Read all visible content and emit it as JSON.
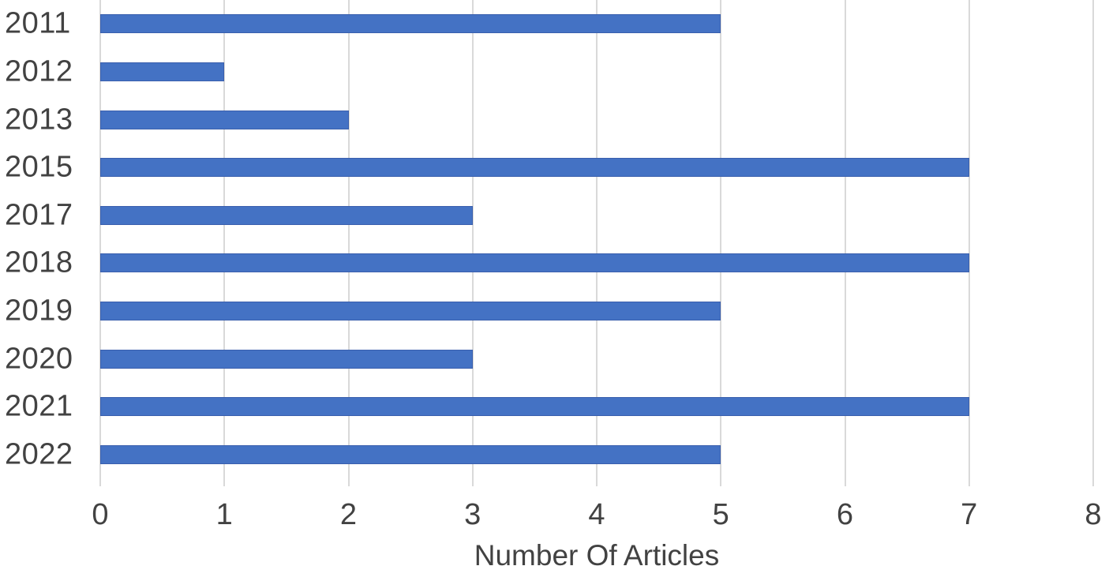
{
  "chart_data": {
    "type": "bar",
    "orientation": "horizontal",
    "categories": [
      "2011",
      "2012",
      "2013",
      "2015",
      "2017",
      "2018",
      "2019",
      "2020",
      "2021",
      "2022"
    ],
    "values": [
      5,
      1,
      2,
      7,
      3,
      7,
      5,
      3,
      7,
      5
    ],
    "title": "",
    "xlabel": "Number Of Articles",
    "ylabel": "",
    "xlim": [
      0,
      8
    ],
    "x_ticks": [
      0,
      1,
      2,
      3,
      4,
      5,
      6,
      7,
      8
    ],
    "grid": "vertical-on",
    "legend": "none",
    "colors": {
      "bar_fill": "#4472c4",
      "bar_border": "#3a5fad",
      "gridline": "#d9d9d9",
      "text": "#424242"
    }
  }
}
